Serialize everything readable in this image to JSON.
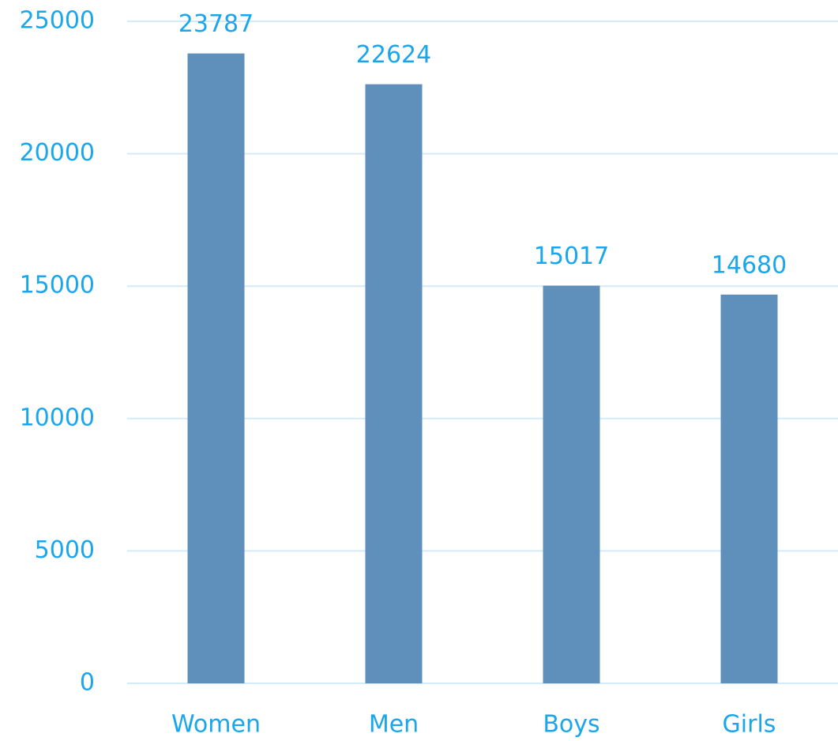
{
  "chart_data": {
    "type": "bar",
    "categories": [
      "Women",
      "Men",
      "Boys",
      "Girls"
    ],
    "values": [
      23787,
      22624,
      15017,
      14680
    ],
    "color": "#5f8fbb",
    "ylim": [
      0,
      25000
    ],
    "yticks": [
      0,
      5000,
      10000,
      15000,
      20000,
      25000
    ],
    "grid": true
  }
}
